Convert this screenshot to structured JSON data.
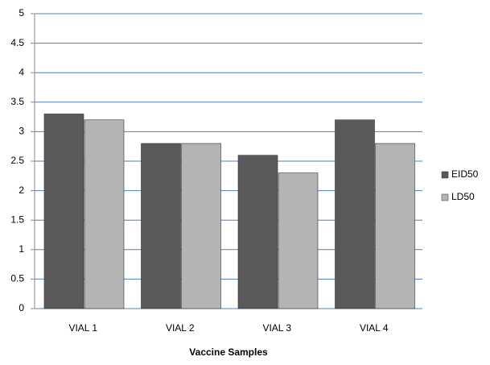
{
  "chart_data": {
    "type": "bar",
    "x_label": "Vaccine Samples",
    "categories": [
      "VIAL 1",
      "VIAL 2",
      "VIAL 3",
      "VIAL 4"
    ],
    "series": [
      {
        "name": "EID50",
        "color": "#5a5a5a",
        "values": [
          3.3,
          2.8,
          2.6,
          3.2
        ]
      },
      {
        "name": "LD50",
        "color": "#b4b4b4",
        "values": [
          3.2,
          2.8,
          2.3,
          2.8
        ]
      }
    ],
    "ylim": [
      0,
      5
    ],
    "yticks": [
      0,
      0.5,
      1,
      1.5,
      2,
      2.5,
      3,
      3.5,
      4,
      4.5,
      5
    ],
    "grid": true,
    "legend": "right"
  }
}
